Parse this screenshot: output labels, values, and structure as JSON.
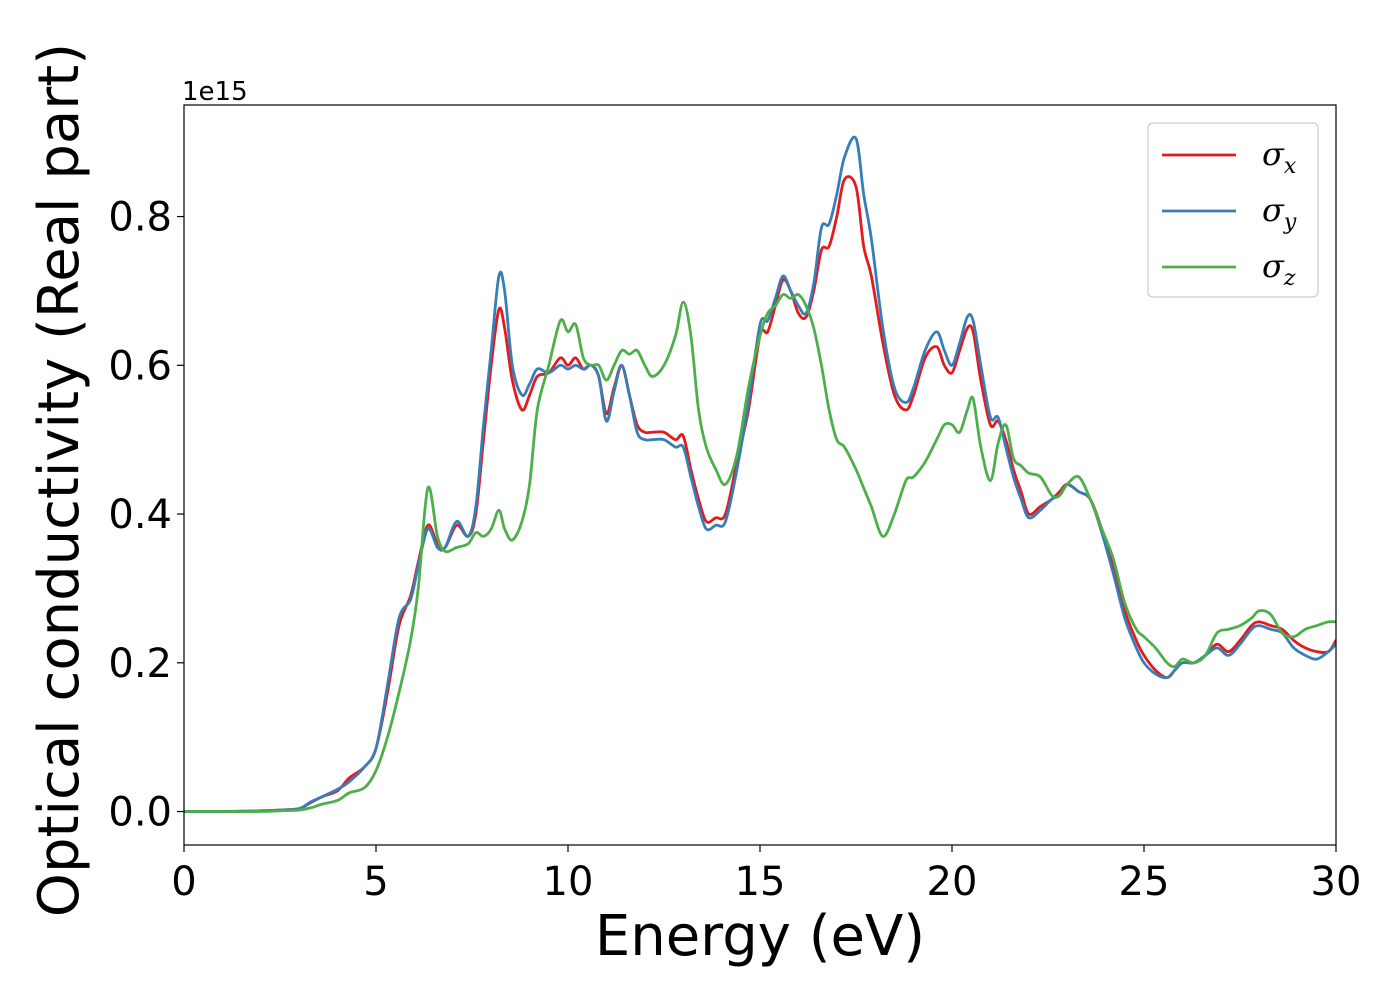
{
  "chart_data": {
    "type": "line",
    "xlabel": "Energy (eV)",
    "ylabel": "Optical conductivity (Real part)",
    "y_offset_label": "1e15",
    "xlim": [
      0,
      30
    ],
    "ylim": [
      -0.045,
      0.95
    ],
    "x_ticks": [
      0,
      5,
      10,
      15,
      20,
      25,
      30
    ],
    "x_tick_labels": [
      "0",
      "5",
      "10",
      "15",
      "20",
      "25",
      "30"
    ],
    "y_ticks": [
      0.0,
      0.2,
      0.4,
      0.6,
      0.8
    ],
    "y_tick_labels": [
      "0.0",
      "0.2",
      "0.4",
      "0.6",
      "0.8"
    ],
    "grid": false,
    "legend_position": "top-right",
    "series": [
      {
        "name": "σ_x",
        "label_base": "σ",
        "label_sub": "x",
        "color": "#e41a1c",
        "x": [
          0,
          1,
          2,
          2.5,
          3,
          3.3,
          3.6,
          4,
          4.3,
          4.7,
          5,
          5.3,
          5.6,
          5.9,
          6.1,
          6.35,
          6.6,
          6.8,
          7.1,
          7.4,
          7.6,
          7.8,
          8,
          8.2,
          8.35,
          8.55,
          8.8,
          9,
          9.2,
          9.5,
          9.8,
          10,
          10.2,
          10.4,
          10.6,
          10.8,
          11,
          11.2,
          11.4,
          11.6,
          11.8,
          12,
          12.2,
          12.5,
          12.8,
          13,
          13.2,
          13.4,
          13.6,
          13.85,
          14.1,
          14.4,
          14.7,
          15,
          15.2,
          15.4,
          15.6,
          15.8,
          16,
          16.2,
          16.4,
          16.6,
          16.8,
          17,
          17.2,
          17.5,
          17.7,
          17.9,
          18.2,
          18.5,
          18.8,
          19,
          19.3,
          19.6,
          19.8,
          20,
          20.2,
          20.4,
          20.55,
          20.75,
          21,
          21.2,
          21.4,
          21.6,
          21.8,
          22,
          22.3,
          22.6,
          22.8,
          23,
          23.3,
          23.6,
          23.9,
          24.2,
          24.5,
          24.8,
          25,
          25.3,
          25.6,
          25.8,
          26,
          26.3,
          26.6,
          26.9,
          27.2,
          27.5,
          27.8,
          28,
          28.3,
          28.6,
          28.9,
          29.2,
          29.5,
          29.8,
          30
        ],
        "y": [
          0,
          0,
          0.001,
          0.002,
          0.004,
          0.012,
          0.02,
          0.028,
          0.045,
          0.06,
          0.085,
          0.16,
          0.25,
          0.29,
          0.335,
          0.385,
          0.36,
          0.355,
          0.385,
          0.37,
          0.4,
          0.5,
          0.6,
          0.675,
          0.65,
          0.58,
          0.54,
          0.56,
          0.585,
          0.59,
          0.61,
          0.6,
          0.61,
          0.595,
          0.6,
          0.585,
          0.535,
          0.57,
          0.6,
          0.56,
          0.52,
          0.51,
          0.51,
          0.51,
          0.5,
          0.505,
          0.46,
          0.42,
          0.39,
          0.395,
          0.4,
          0.47,
          0.54,
          0.64,
          0.645,
          0.68,
          0.715,
          0.7,
          0.67,
          0.665,
          0.7,
          0.755,
          0.76,
          0.8,
          0.85,
          0.84,
          0.76,
          0.72,
          0.63,
          0.56,
          0.54,
          0.56,
          0.61,
          0.625,
          0.6,
          0.59,
          0.62,
          0.65,
          0.645,
          0.58,
          0.52,
          0.525,
          0.5,
          0.46,
          0.43,
          0.4,
          0.41,
          0.42,
          0.43,
          0.44,
          0.43,
          0.42,
          0.38,
          0.33,
          0.27,
          0.23,
          0.21,
          0.19,
          0.18,
          0.19,
          0.2,
          0.2,
          0.21,
          0.225,
          0.215,
          0.23,
          0.25,
          0.255,
          0.25,
          0.245,
          0.23,
          0.22,
          0.215,
          0.215,
          0.23
        ]
      },
      {
        "name": "σ_y",
        "label_base": "σ",
        "label_sub": "y",
        "color": "#377eb8",
        "x": [
          0,
          1,
          2,
          2.5,
          3,
          3.3,
          3.6,
          4,
          4.3,
          4.7,
          5,
          5.3,
          5.6,
          5.9,
          6.1,
          6.35,
          6.6,
          6.8,
          7.1,
          7.4,
          7.6,
          7.8,
          8,
          8.2,
          8.35,
          8.55,
          8.8,
          9,
          9.2,
          9.5,
          9.8,
          10,
          10.2,
          10.4,
          10.6,
          10.8,
          11,
          11.2,
          11.4,
          11.6,
          11.8,
          12,
          12.2,
          12.5,
          12.8,
          13,
          13.2,
          13.4,
          13.6,
          13.85,
          14.1,
          14.4,
          14.7,
          15,
          15.2,
          15.4,
          15.6,
          15.8,
          16,
          16.2,
          16.4,
          16.6,
          16.8,
          17,
          17.2,
          17.5,
          17.7,
          17.9,
          18.2,
          18.5,
          18.8,
          19,
          19.3,
          19.6,
          19.8,
          20,
          20.2,
          20.4,
          20.55,
          20.75,
          21,
          21.2,
          21.4,
          21.6,
          21.8,
          22,
          22.3,
          22.6,
          22.8,
          23,
          23.3,
          23.6,
          23.9,
          24.2,
          24.5,
          24.8,
          25,
          25.3,
          25.6,
          25.8,
          26,
          26.3,
          26.6,
          26.9,
          27.2,
          27.5,
          27.8,
          28,
          28.3,
          28.6,
          28.9,
          29.2,
          29.5,
          29.8,
          30
        ],
        "y": [
          0,
          0,
          0.001,
          0.002,
          0.004,
          0.013,
          0.02,
          0.03,
          0.04,
          0.06,
          0.085,
          0.17,
          0.26,
          0.285,
          0.33,
          0.38,
          0.355,
          0.355,
          0.39,
          0.37,
          0.41,
          0.52,
          0.62,
          0.72,
          0.7,
          0.6,
          0.56,
          0.575,
          0.595,
          0.59,
          0.6,
          0.595,
          0.6,
          0.595,
          0.6,
          0.585,
          0.525,
          0.565,
          0.6,
          0.56,
          0.51,
          0.5,
          0.5,
          0.5,
          0.49,
          0.49,
          0.45,
          0.41,
          0.38,
          0.385,
          0.39,
          0.46,
          0.55,
          0.655,
          0.66,
          0.69,
          0.72,
          0.7,
          0.68,
          0.67,
          0.71,
          0.785,
          0.79,
          0.83,
          0.88,
          0.905,
          0.83,
          0.77,
          0.65,
          0.57,
          0.55,
          0.57,
          0.62,
          0.645,
          0.62,
          0.6,
          0.63,
          0.665,
          0.66,
          0.6,
          0.53,
          0.53,
          0.49,
          0.45,
          0.42,
          0.395,
          0.405,
          0.42,
          0.425,
          0.44,
          0.43,
          0.42,
          0.375,
          0.32,
          0.26,
          0.22,
          0.2,
          0.185,
          0.18,
          0.19,
          0.2,
          0.2,
          0.21,
          0.22,
          0.21,
          0.225,
          0.245,
          0.25,
          0.245,
          0.24,
          0.22,
          0.21,
          0.205,
          0.215,
          0.225
        ]
      },
      {
        "name": "σ_z",
        "label_base": "σ",
        "label_sub": "z",
        "color": "#4daf4a",
        "x": [
          0,
          1,
          2,
          2.5,
          3,
          3.3,
          3.6,
          4,
          4.3,
          4.7,
          5,
          5.3,
          5.6,
          5.9,
          6.1,
          6.35,
          6.6,
          6.8,
          7.1,
          7.4,
          7.6,
          7.8,
          8,
          8.2,
          8.35,
          8.55,
          8.8,
          9,
          9.2,
          9.5,
          9.8,
          10,
          10.2,
          10.4,
          10.6,
          10.8,
          11,
          11.2,
          11.4,
          11.6,
          11.8,
          12,
          12.2,
          12.5,
          12.8,
          13,
          13.2,
          13.4,
          13.6,
          13.85,
          14.1,
          14.4,
          14.7,
          15,
          15.2,
          15.4,
          15.6,
          15.8,
          16,
          16.2,
          16.4,
          16.6,
          16.8,
          17,
          17.2,
          17.5,
          17.7,
          17.9,
          18.2,
          18.5,
          18.8,
          19,
          19.3,
          19.6,
          19.8,
          20,
          20.2,
          20.4,
          20.55,
          20.75,
          21,
          21.2,
          21.4,
          21.6,
          21.8,
          22,
          22.3,
          22.6,
          22.8,
          23,
          23.3,
          23.6,
          23.9,
          24.2,
          24.5,
          24.8,
          25,
          25.3,
          25.6,
          25.8,
          26,
          26.3,
          26.6,
          26.9,
          27.2,
          27.5,
          27.8,
          28,
          28.3,
          28.6,
          28.9,
          29.2,
          29.5,
          29.8,
          30
        ],
        "y": [
          0,
          0,
          0,
          0.001,
          0.002,
          0.005,
          0.01,
          0.015,
          0.025,
          0.032,
          0.055,
          0.1,
          0.16,
          0.23,
          0.3,
          0.435,
          0.37,
          0.35,
          0.355,
          0.36,
          0.375,
          0.37,
          0.38,
          0.405,
          0.38,
          0.365,
          0.39,
          0.44,
          0.54,
          0.6,
          0.66,
          0.645,
          0.655,
          0.61,
          0.6,
          0.6,
          0.58,
          0.6,
          0.62,
          0.615,
          0.62,
          0.6,
          0.585,
          0.6,
          0.64,
          0.685,
          0.64,
          0.54,
          0.49,
          0.46,
          0.44,
          0.48,
          0.57,
          0.64,
          0.67,
          0.68,
          0.695,
          0.69,
          0.695,
          0.68,
          0.65,
          0.6,
          0.54,
          0.5,
          0.49,
          0.46,
          0.435,
          0.41,
          0.37,
          0.4,
          0.445,
          0.45,
          0.47,
          0.5,
          0.52,
          0.52,
          0.51,
          0.54,
          0.555,
          0.49,
          0.445,
          0.495,
          0.52,
          0.475,
          0.465,
          0.455,
          0.45,
          0.425,
          0.425,
          0.44,
          0.45,
          0.42,
          0.38,
          0.34,
          0.28,
          0.245,
          0.235,
          0.22,
          0.2,
          0.195,
          0.205,
          0.2,
          0.21,
          0.24,
          0.245,
          0.25,
          0.26,
          0.27,
          0.265,
          0.24,
          0.235,
          0.245,
          0.25,
          0.255,
          0.255
        ]
      }
    ]
  }
}
